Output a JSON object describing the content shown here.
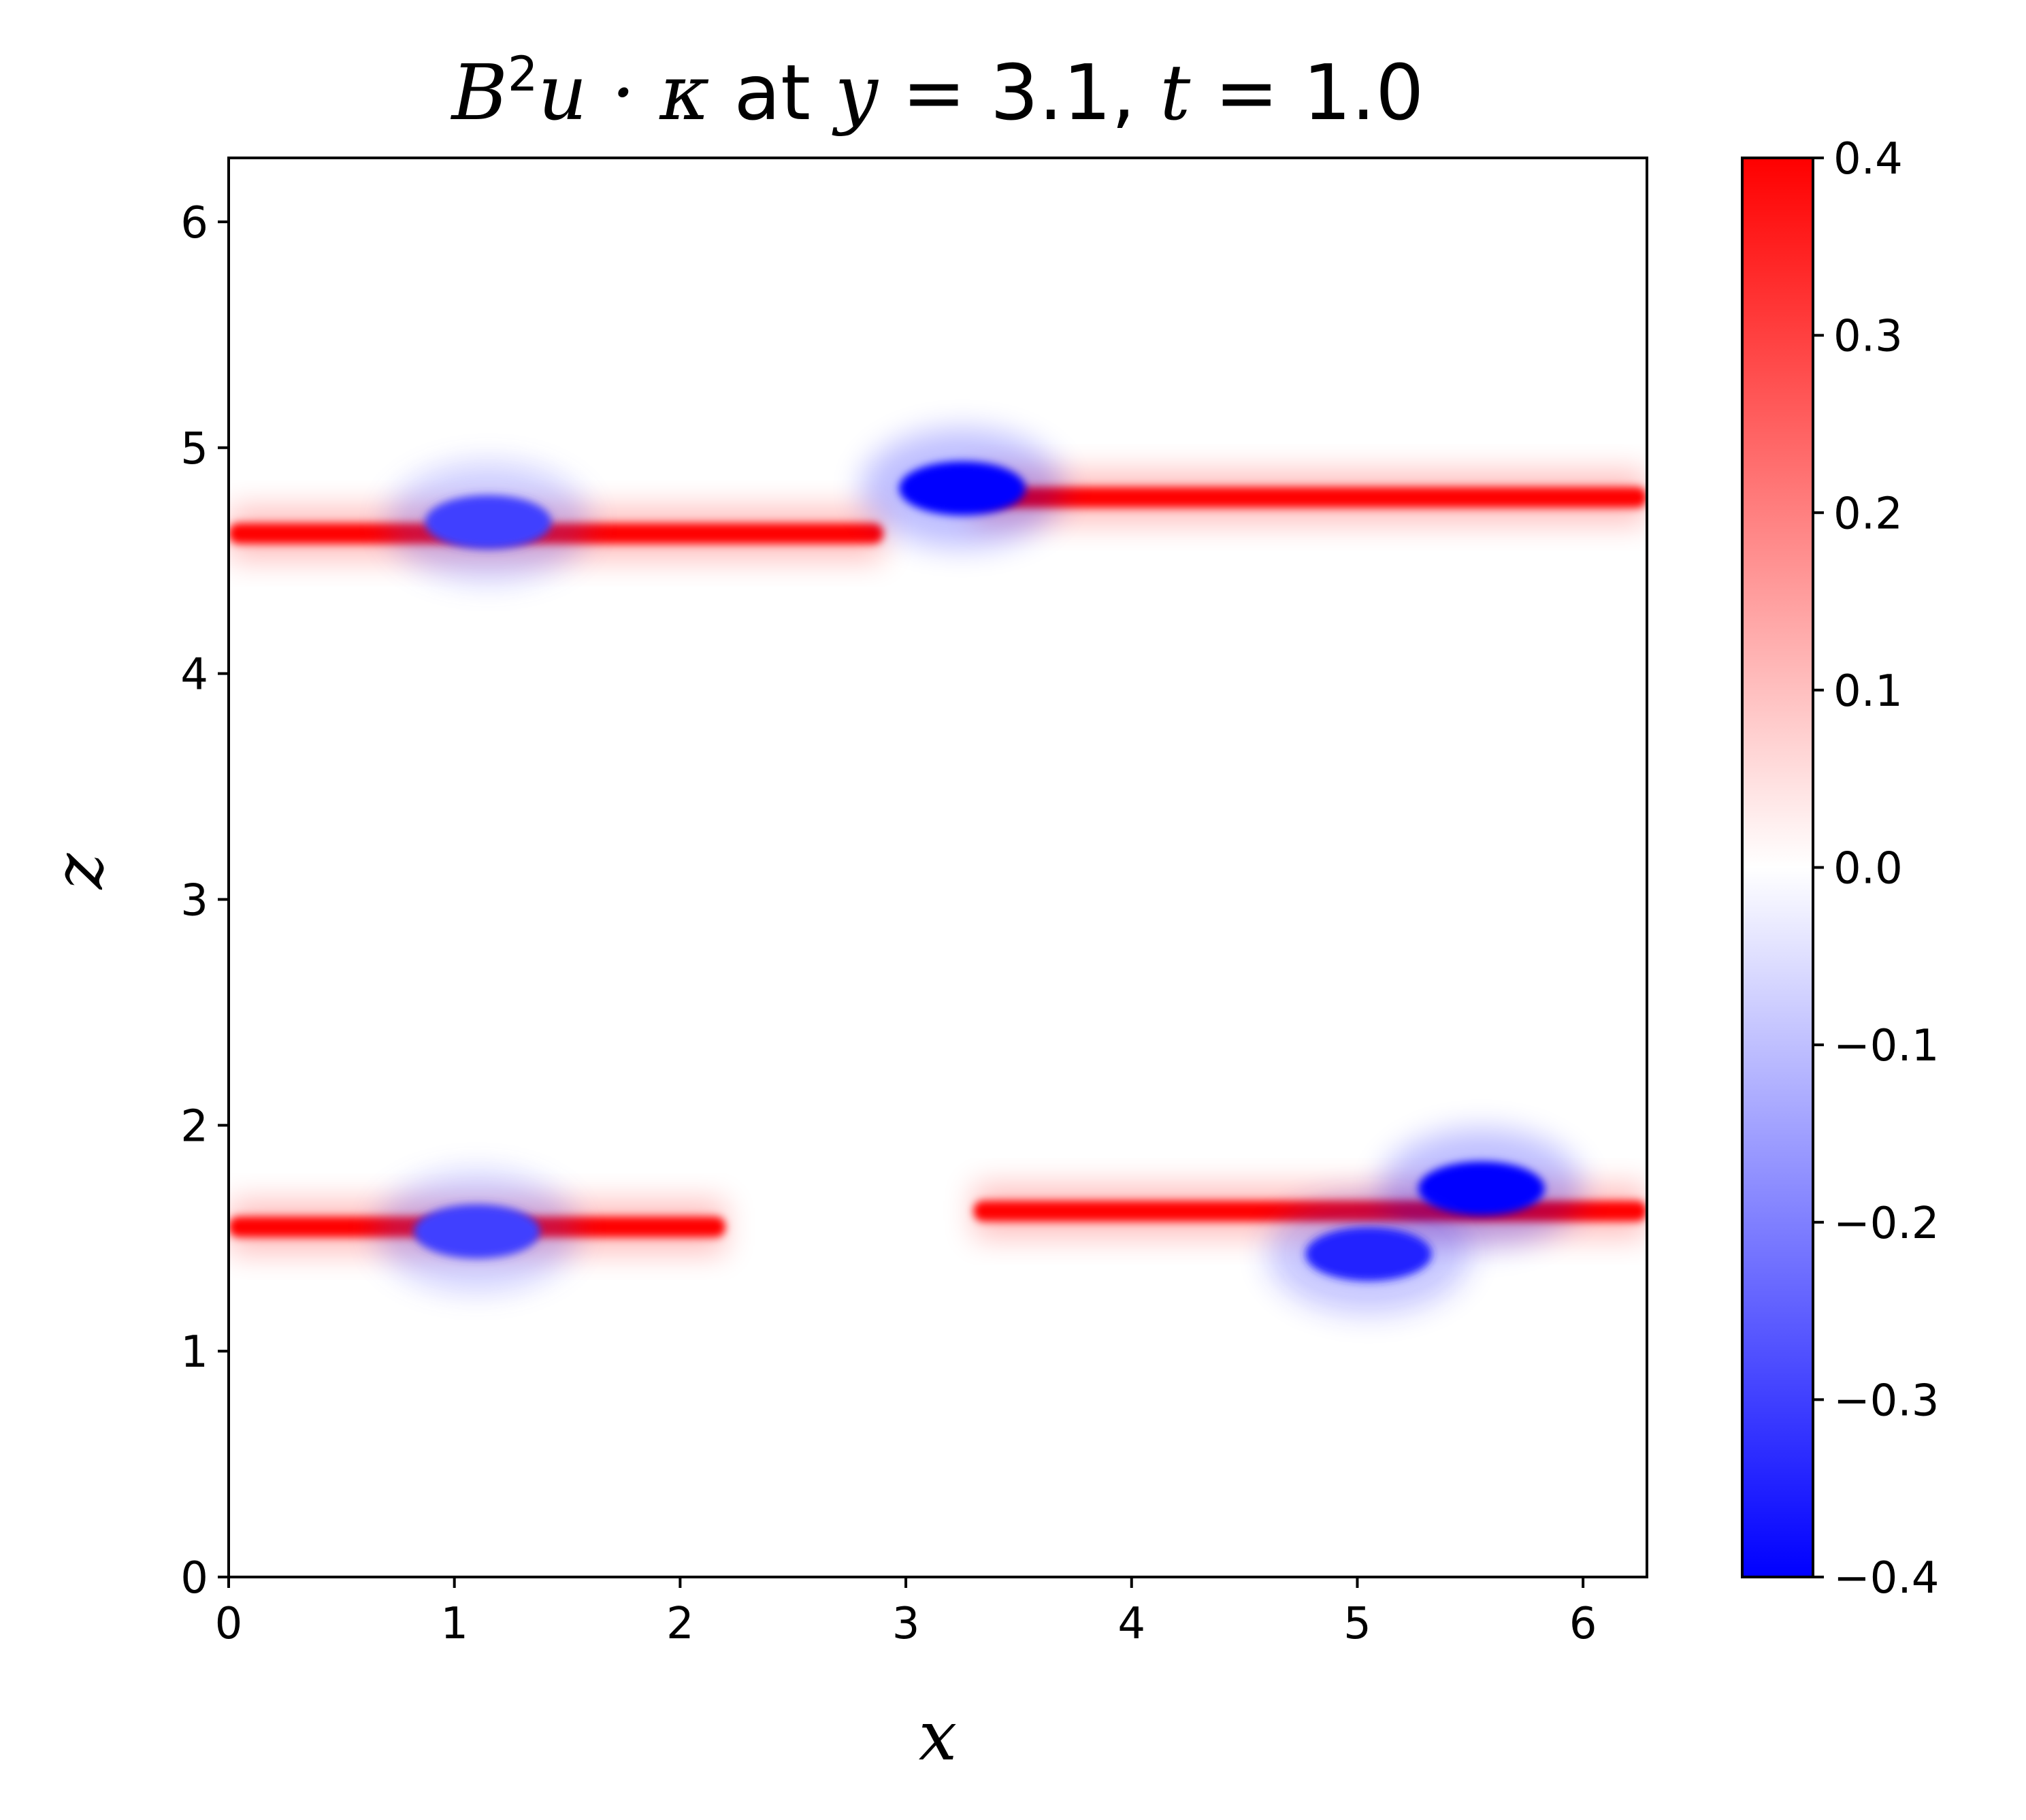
{
  "chart_data": {
    "type": "heatmap",
    "title": {
      "prefix": "B",
      "superscript": "2",
      "middle": "u · κ",
      "at_text": " at ",
      "y_var": "y",
      "y_eq": " = 3.1, ",
      "t_var": "t",
      "t_eq": " = 1.0"
    },
    "xlabel": "x",
    "ylabel": "z",
    "xlim": [
      0,
      6.283
    ],
    "ylim": [
      0,
      6.283
    ],
    "xticks": [
      0,
      1,
      2,
      3,
      4,
      5,
      6
    ],
    "yticks": [
      0,
      1,
      2,
      3,
      4,
      5,
      6
    ],
    "xtick_labels": [
      "0",
      "1",
      "2",
      "3",
      "4",
      "5",
      "6"
    ],
    "ytick_labels": [
      "0",
      "1",
      "2",
      "3",
      "4",
      "5",
      "6"
    ],
    "colormap": "bwr",
    "colors": {
      "min": "#0000ff",
      "mid": "#ffffff",
      "max": "#ff0000"
    },
    "clim": [
      -0.4,
      0.4
    ],
    "colorbar_ticks": [
      0.4,
      0.3,
      0.2,
      0.1,
      0.0,
      -0.1,
      -0.2,
      -0.3,
      -0.4
    ],
    "colorbar_tick_labels": [
      "0.4",
      "0.3",
      "0.2",
      "0.1",
      "0.0",
      "−0.1",
      "−0.2",
      "−0.3",
      "−0.4"
    ],
    "grid": false,
    "features": [
      {
        "kind": "band",
        "sign": "positive",
        "z_center": 4.62,
        "x_range": [
          0,
          2.9
        ],
        "value": 0.4
      },
      {
        "kind": "band",
        "sign": "positive",
        "z_center": 4.78,
        "x_range": [
          3.3,
          6.283
        ],
        "value": 0.4
      },
      {
        "kind": "blob",
        "sign": "negative",
        "x": 3.25,
        "z": 4.82,
        "value": -0.4
      },
      {
        "kind": "blob",
        "sign": "negative",
        "x": 1.15,
        "z": 4.67,
        "value": -0.3
      },
      {
        "kind": "band",
        "sign": "positive",
        "z_center": 1.55,
        "x_range": [
          0,
          2.2
        ],
        "value": 0.4
      },
      {
        "kind": "band",
        "sign": "positive",
        "z_center": 1.62,
        "x_range": [
          3.3,
          6.283
        ],
        "value": 0.4
      },
      {
        "kind": "blob",
        "sign": "negative",
        "x": 5.55,
        "z": 1.72,
        "value": -0.4
      },
      {
        "kind": "blob",
        "sign": "negative",
        "x": 5.05,
        "z": 1.43,
        "value": -0.35
      },
      {
        "kind": "blob",
        "sign": "negative",
        "x": 1.1,
        "z": 1.53,
        "value": -0.3
      }
    ]
  }
}
